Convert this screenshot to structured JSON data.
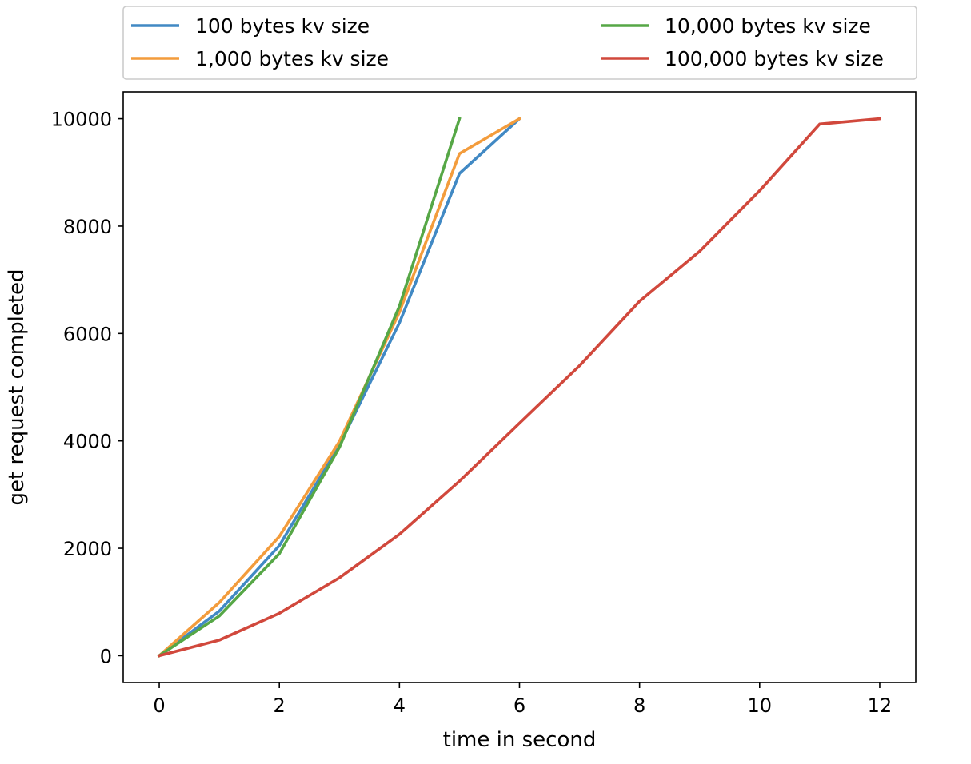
{
  "chart_data": {
    "type": "line",
    "title": "",
    "xlabel": "time in second",
    "ylabel": "get request completed",
    "xlim": [
      -0.6,
      12.6
    ],
    "ylim": [
      -500,
      10500
    ],
    "xticks": [
      0,
      2,
      4,
      6,
      8,
      10,
      12
    ],
    "yticks": [
      0,
      2000,
      4000,
      6000,
      8000,
      10000
    ],
    "grid": false,
    "legend_position": "top",
    "series": [
      {
        "name": "100 bytes kv size",
        "color": "#4189c4",
        "x": [
          0,
          1,
          2,
          3,
          4,
          5,
          6
        ],
        "y": [
          0,
          830,
          2050,
          3920,
          6200,
          8980,
          10000
        ]
      },
      {
        "name": "1,000 bytes kv size",
        "color": "#f39c3c",
        "x": [
          0,
          1,
          2,
          3,
          4,
          5,
          6
        ],
        "y": [
          0,
          990,
          2220,
          3990,
          6400,
          9350,
          10000
        ]
      },
      {
        "name": "10,000 bytes kv size",
        "color": "#56a746",
        "x": [
          0,
          1,
          2,
          3,
          4,
          5
        ],
        "y": [
          0,
          740,
          1900,
          3880,
          6510,
          10000
        ]
      },
      {
        "name": "100,000 bytes kv size",
        "color": "#d1483c",
        "x": [
          0,
          1,
          2,
          3,
          4,
          5,
          6,
          7,
          8,
          9,
          10,
          11,
          12
        ],
        "y": [
          0,
          290,
          790,
          1450,
          2260,
          3250,
          4330,
          5400,
          6600,
          7530,
          8660,
          9900,
          10000
        ]
      }
    ]
  }
}
